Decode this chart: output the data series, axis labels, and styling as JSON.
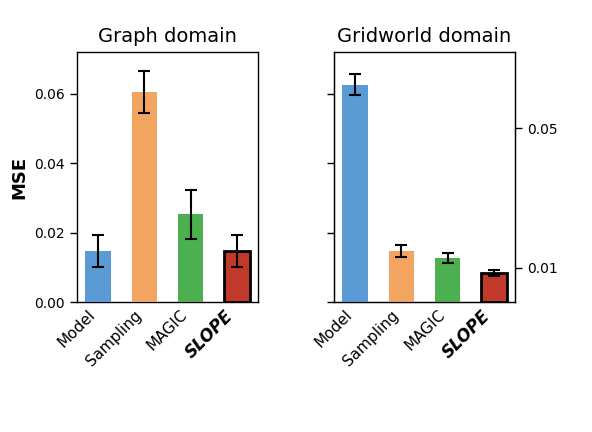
{
  "graph_domain": {
    "title": "Graph domain",
    "categories": [
      "Model",
      "Sampling",
      "MAGIC",
      "SLOPE"
    ],
    "values": [
      0.0148,
      0.0605,
      0.0253,
      0.0148
    ],
    "errors": [
      0.0045,
      0.006,
      0.007,
      0.0045
    ],
    "colors": [
      "#5b9bd5",
      "#f4a461",
      "#4caf50",
      "#c0392b"
    ]
  },
  "gridworld_domain": {
    "title": "Gridworld domain",
    "categories": [
      "Model",
      "Sampling",
      "MAGIC",
      "SLOPE"
    ],
    "values": [
      0.0625,
      0.0148,
      0.0128,
      0.0085
    ],
    "errors": [
      0.003,
      0.0018,
      0.0015,
      0.0008
    ],
    "colors": [
      "#5b9bd5",
      "#f4a461",
      "#4caf50",
      "#c0392b"
    ],
    "right_yticks": [
      0.01,
      0.05
    ],
    "right_ytick_labels": [
      "0.01",
      "0.05"
    ]
  },
  "ylabel": "MSE",
  "ylim": [
    0,
    0.072
  ],
  "yticks": [
    0.0,
    0.02,
    0.04,
    0.06
  ],
  "ytick_labels": [
    "0.00",
    "0.02",
    "0.04",
    "0.06"
  ],
  "bar_width": 0.55,
  "title_fontsize": 14,
  "label_fontsize": 11,
  "tick_fontsize": 10,
  "ylabel_fontsize": 13
}
